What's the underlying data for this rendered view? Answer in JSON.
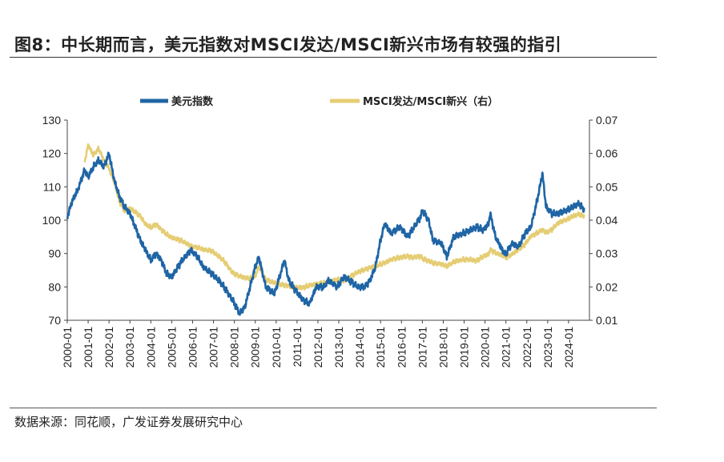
{
  "figure": {
    "title": "图8：中长期而言，美元指数对MSCI发达/MSCI新兴市场有较强的指引",
    "source": "数据来源：同花顺，广发证券发展研究中心"
  },
  "colors": {
    "dxy": "#1F65A5",
    "ratio": "#E5CD74",
    "axis": "#444444"
  },
  "chart_data": {
    "type": "line",
    "title": "图8：中长期而言，美元指数对MSCI发达/MSCI新兴市场有较强的指引",
    "x_label": "",
    "y_left": {
      "label": "",
      "min": 70,
      "max": 130,
      "ticks": [
        "70",
        "80",
        "90",
        "100",
        "110",
        "120",
        "130"
      ]
    },
    "y_right": {
      "label": "",
      "min": 0.01,
      "max": 0.07,
      "ticks": [
        "0.01",
        "0.02",
        "0.03",
        "0.04",
        "0.05",
        "0.06",
        "0.07"
      ]
    },
    "x_ticks": [
      "2000-01",
      "2001-01",
      "2002-01",
      "2003-01",
      "2004-01",
      "2005-01",
      "2006-01",
      "2007-01",
      "2008-01",
      "2009-01",
      "2010-01",
      "2011-01",
      "2012-01",
      "2013-01",
      "2014-01",
      "2015-01",
      "2016-01",
      "2017-01",
      "2018-01",
      "2019-01",
      "2020-01",
      "2021-01",
      "2022-01",
      "2023-01",
      "2024-01"
    ],
    "legend_position": "top",
    "grid": false,
    "series": [
      {
        "name": "美元指数",
        "axis": "left",
        "x": [
          2000.0,
          2000.25,
          2000.5,
          2000.83,
          2001.0,
          2001.25,
          2001.5,
          2001.75,
          2002.0,
          2002.25,
          2002.5,
          2002.75,
          2003.0,
          2003.25,
          2003.5,
          2003.75,
          2004.0,
          2004.25,
          2004.5,
          2004.75,
          2005.0,
          2005.5,
          2005.92,
          2006.25,
          2006.5,
          2006.92,
          2007.25,
          2007.5,
          2007.92,
          2008.25,
          2008.5,
          2008.75,
          2009.0,
          2009.17,
          2009.5,
          2009.92,
          2010.4,
          2010.6,
          2010.92,
          2011.3,
          2011.6,
          2011.92,
          2012.3,
          2012.5,
          2012.92,
          2013.25,
          2013.5,
          2013.92,
          2014.25,
          2014.5,
          2014.75,
          2015.0,
          2015.2,
          2015.5,
          2015.92,
          2016.3,
          2016.5,
          2016.92,
          2017.0,
          2017.3,
          2017.5,
          2017.92,
          2018.17,
          2018.5,
          2018.92,
          2019.3,
          2019.6,
          2019.92,
          2020.17,
          2020.25,
          2020.5,
          2020.92,
          2021.0,
          2021.3,
          2021.6,
          2021.92,
          2022.2,
          2022.5,
          2022.75,
          2022.92,
          2023.2,
          2023.5,
          2023.92,
          2024.2,
          2024.5,
          2024.75
        ],
        "values": [
          101,
          106,
          109,
          115,
          113,
          116,
          118,
          116,
          120,
          112,
          107,
          104,
          102,
          98,
          94,
          91,
          88,
          90,
          88,
          84,
          83,
          88,
          91,
          89,
          86,
          84,
          82,
          80,
          76,
          72,
          74,
          80,
          86,
          89,
          80,
          78,
          88,
          82,
          79,
          76,
          75,
          80,
          80,
          82,
          80,
          83,
          82,
          80,
          80,
          82,
          86,
          94,
          99,
          96,
          98,
          95,
          97,
          101,
          103,
          100,
          94,
          93,
          89,
          95,
          96,
          97,
          98,
          97,
          99,
          102,
          95,
          90,
          90,
          93,
          92,
          96,
          98,
          106,
          114,
          104,
          102,
          102,
          103,
          104,
          105,
          103
        ]
      },
      {
        "name": "MSCI发达/MSCI新兴（右）",
        "axis": "right",
        "x": [
          2000.0,
          2000.25,
          2000.5,
          2000.83,
          2001.0,
          2001.25,
          2001.5,
          2001.75,
          2002.0,
          2002.25,
          2002.5,
          2002.75,
          2003.0,
          2003.25,
          2003.5,
          2003.75,
          2004.0,
          2004.25,
          2004.5,
          2004.75,
          2005.0,
          2005.5,
          2005.92,
          2006.25,
          2006.5,
          2006.92,
          2007.25,
          2007.5,
          2007.92,
          2008.25,
          2008.5,
          2008.75,
          2009.0,
          2009.17,
          2009.5,
          2009.92,
          2010.4,
          2010.6,
          2010.92,
          2011.3,
          2011.6,
          2011.92,
          2012.3,
          2012.5,
          2012.92,
          2013.25,
          2013.5,
          2013.92,
          2014.25,
          2014.5,
          2014.75,
          2015.0,
          2015.2,
          2015.5,
          2015.92,
          2016.3,
          2016.5,
          2016.92,
          2017.0,
          2017.3,
          2017.5,
          2017.92,
          2018.17,
          2018.5,
          2018.92,
          2019.3,
          2019.6,
          2019.92,
          2020.17,
          2020.25,
          2020.5,
          2020.92,
          2021.0,
          2021.3,
          2021.6,
          2021.92,
          2022.2,
          2022.5,
          2022.75,
          2022.92,
          2023.2,
          2023.5,
          2023.92,
          2024.2,
          2024.5,
          2024.75
        ],
        "values": [
          null,
          null,
          null,
          0.0575,
          0.0625,
          0.0595,
          0.0615,
          0.058,
          0.0555,
          0.0515,
          0.0455,
          0.0428,
          0.0435,
          0.0425,
          0.0412,
          0.0388,
          0.0378,
          0.0388,
          0.0372,
          0.0358,
          0.0348,
          0.0338,
          0.0322,
          0.0318,
          0.0312,
          0.0308,
          0.0292,
          0.0278,
          0.0242,
          0.0232,
          0.0228,
          0.0225,
          0.0232,
          0.0262,
          0.0222,
          0.0212,
          0.0205,
          0.0203,
          0.0198,
          0.0198,
          0.0205,
          0.0208,
          0.0212,
          0.0215,
          0.0222,
          0.0218,
          0.0228,
          0.0245,
          0.0252,
          0.0258,
          0.0262,
          0.0268,
          0.0272,
          0.0282,
          0.0288,
          0.0292,
          0.0288,
          0.0292,
          0.0285,
          0.0278,
          0.0272,
          0.0268,
          0.0262,
          0.0275,
          0.0282,
          0.0282,
          0.0278,
          0.0292,
          0.0298,
          0.0312,
          0.0302,
          0.0292,
          0.0288,
          0.0298,
          0.0312,
          0.0328,
          0.0352,
          0.0362,
          0.0372,
          0.0362,
          0.0372,
          0.0392,
          0.0402,
          0.0412,
          0.0418,
          0.0412
        ]
      }
    ]
  }
}
